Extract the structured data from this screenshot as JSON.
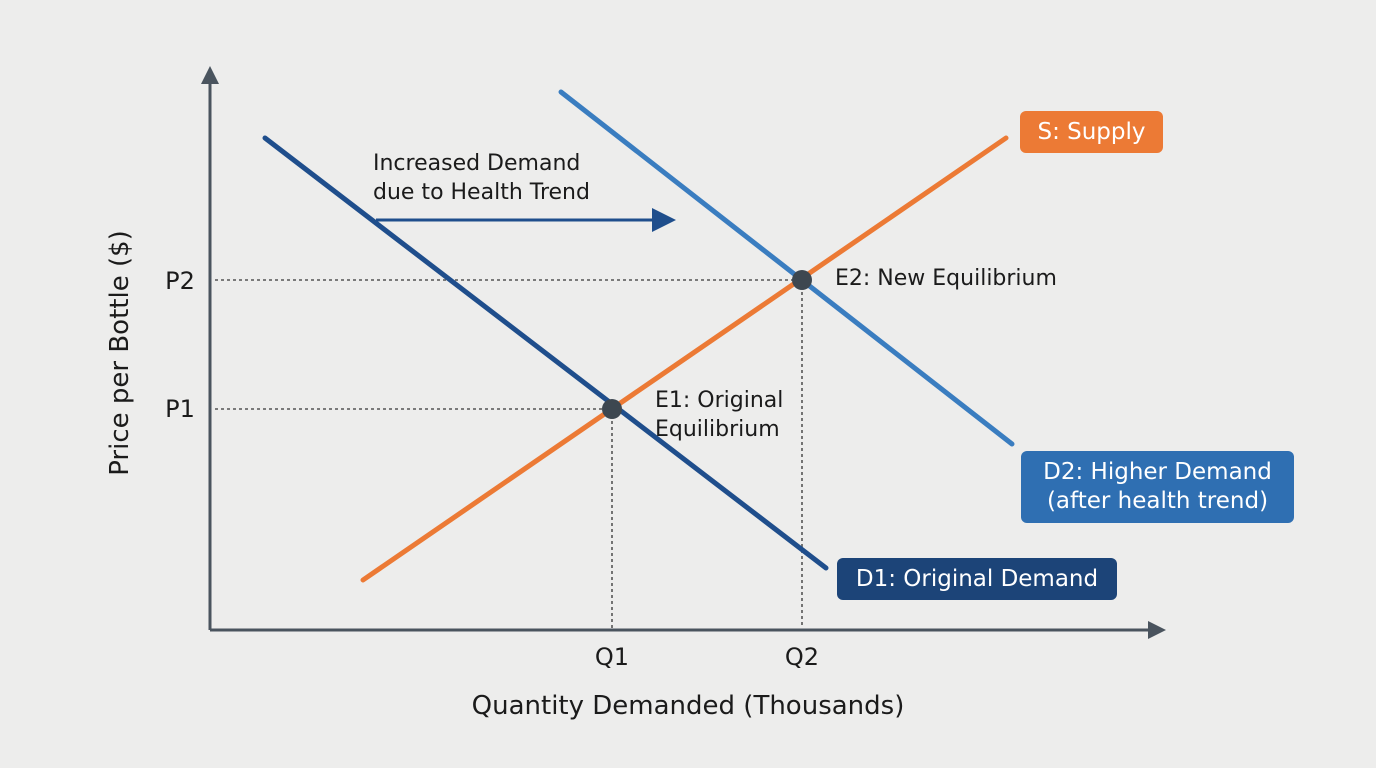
{
  "axes": {
    "y_label": "Price per Bottle ($)",
    "x_label": "Quantity Demanded (Thousands)",
    "y_ticks": [
      "P2",
      "P1"
    ],
    "x_ticks": [
      "Q1",
      "Q2"
    ]
  },
  "annotation": {
    "line1": "Increased Demand",
    "line2": "due to Health Trend"
  },
  "points": {
    "e1_line1": "E1: Original",
    "e1_line2": "Equilibrium",
    "e2": "E2: New Equilibrium"
  },
  "curves": {
    "supply": "S: Supply",
    "d2_line1": "D2: Higher Demand",
    "d2_line2": "(after health trend)",
    "d1": "D1: Original Demand"
  },
  "colors": {
    "supply": "#ec7a35",
    "d1": "#1f4e8c",
    "d2": "#3a7dc0",
    "axis": "#4a545e",
    "point": "#3d4750",
    "background": "#ededec"
  }
}
